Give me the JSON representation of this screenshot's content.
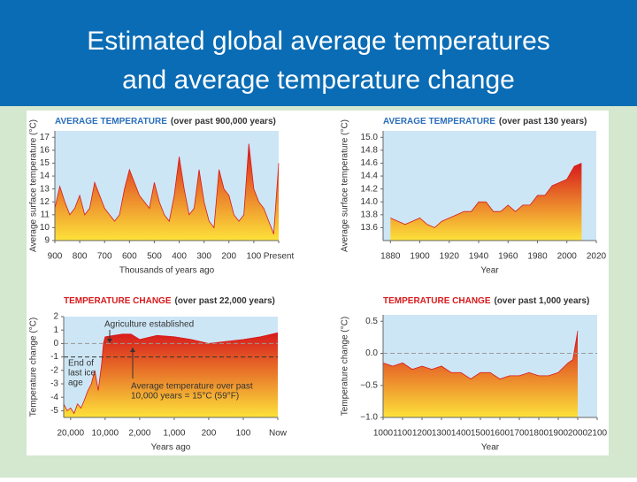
{
  "header": {
    "title_lines": [
      "Estimated global average temperatures",
      "and average temperature change"
    ]
  },
  "chart_data": [
    {
      "type": "area",
      "title": "AVERAGE TEMPERATURE",
      "subtitle": "(over past 900,000 years)",
      "title_color": "#2a6ebb",
      "x_label": "Thousands of years ago",
      "y_label": "Average surface temperature (°C)",
      "x": [
        900,
        880,
        860,
        840,
        820,
        800,
        780,
        760,
        740,
        720,
        700,
        680,
        660,
        640,
        620,
        600,
        580,
        560,
        540,
        520,
        500,
        480,
        460,
        440,
        420,
        400,
        380,
        360,
        340,
        320,
        300,
        280,
        260,
        240,
        220,
        200,
        180,
        160,
        140,
        120,
        100,
        80,
        60,
        40,
        20,
        0
      ],
      "values": [
        11.5,
        13.2,
        12,
        11,
        11.5,
        12.5,
        11,
        11.5,
        13.5,
        12.5,
        11.5,
        11,
        10.5,
        11,
        13,
        14.5,
        13.5,
        12.5,
        12,
        11.5,
        13.5,
        12,
        11,
        10.5,
        12.5,
        15.5,
        13,
        11,
        11.5,
        14.5,
        12,
        10.5,
        10,
        14.5,
        13,
        12.5,
        11,
        10.5,
        11,
        16.5,
        13,
        12,
        11.5,
        10.5,
        9.5,
        15
      ],
      "xlim": [
        900,
        0
      ],
      "xticks": [
        900,
        800,
        700,
        600,
        500,
        400,
        300,
        200,
        100,
        {
          "value": 0,
          "label": "Present"
        }
      ],
      "ylim": [
        9,
        17.5
      ],
      "yticks": [
        9,
        10,
        11,
        12,
        13,
        14,
        15,
        16,
        17
      ],
      "gradient": [
        "#d7191c",
        "#fde23a"
      ],
      "background": "#cde6f5"
    },
    {
      "type": "area",
      "title": "AVERAGE TEMPERATURE",
      "subtitle": "(over past 130 years)",
      "title_color": "#2a6ebb",
      "x_label": "Year",
      "y_label": "Average surface temperature (°C)",
      "x": [
        1880,
        1885,
        1890,
        1895,
        1900,
        1905,
        1910,
        1915,
        1920,
        1925,
        1930,
        1935,
        1940,
        1945,
        1950,
        1955,
        1960,
        1965,
        1970,
        1975,
        1980,
        1985,
        1990,
        1995,
        2000,
        2005,
        2010
      ],
      "values": [
        13.75,
        13.7,
        13.65,
        13.7,
        13.75,
        13.65,
        13.6,
        13.7,
        13.75,
        13.8,
        13.85,
        13.85,
        14.0,
        14.0,
        13.85,
        13.85,
        13.95,
        13.85,
        13.95,
        13.95,
        14.1,
        14.1,
        14.25,
        14.3,
        14.35,
        14.55,
        14.6
      ],
      "xlim": [
        1875,
        2020
      ],
      "xticks": [
        1880,
        1900,
        1920,
        1940,
        1960,
        1980,
        2000,
        2020
      ],
      "ylim": [
        13.4,
        15.1
      ],
      "yticks": [
        {
          "value": 13.6,
          "label": "13.6"
        },
        {
          "value": 13.8,
          "label": "13.8"
        },
        {
          "value": 14.0,
          "label": "14.0"
        },
        {
          "value": 14.2,
          "label": "14.2"
        },
        {
          "value": 14.4,
          "label": "14.4"
        },
        {
          "value": 14.6,
          "label": "14.6"
        },
        {
          "value": 14.8,
          "label": "14.8"
        },
        {
          "value": 15.0,
          "label": "15.0"
        }
      ],
      "gradient": [
        "#d7191c",
        "#fde23a"
      ],
      "background": "#cde6f5"
    },
    {
      "type": "area",
      "title": "TEMPERATURE CHANGE",
      "subtitle": "(over past 22,000 years)",
      "title_color": "#d7191c",
      "x_label": "Years ago",
      "y_label": "Temperature change (°C)",
      "x_tick_spacing": "even",
      "x": [
        22000,
        21000,
        20000,
        19000,
        18000,
        17000,
        16000,
        15000,
        14000,
        13000,
        12000,
        11000,
        10500,
        10000,
        8000,
        6000,
        4000,
        2000,
        1500,
        1000,
        600,
        200,
        100,
        50,
        0
      ],
      "values": [
        -4.5,
        -5,
        -4.8,
        -5.2,
        -4.5,
        -4.8,
        -4.2,
        -3.5,
        -3,
        -2,
        -3.5,
        -1.5,
        0,
        0.5,
        0.6,
        0.7,
        0.7,
        0.3,
        0.6,
        0.5,
        0.3,
        0,
        0.3,
        0.5,
        0.8
      ],
      "xlim": [
        22000,
        0
      ],
      "xticks": [
        {
          "value": 20000,
          "label": "20,000"
        },
        {
          "value": 10000,
          "label": "10,000"
        },
        {
          "value": 2000,
          "label": "2,000"
        },
        {
          "value": 1000,
          "label": "1,000"
        },
        200,
        100,
        {
          "value": 0,
          "label": "Now"
        }
      ],
      "ylim": [
        -5.5,
        2
      ],
      "yticks": [
        -5,
        -4,
        -3,
        -2,
        -1,
        0,
        1,
        2
      ],
      "dashed_lines": [
        {
          "value": 0,
          "color": "#999999"
        },
        {
          "value": -1,
          "color": "#333333"
        }
      ],
      "annotations": [
        {
          "lines": [
            "Agriculture established"
          ]
        },
        {
          "lines": [
            "End of",
            "last ice",
            "age"
          ]
        },
        {
          "lines": [
            "Average temperature over past",
            "10,000 years = 15°C (59°F)"
          ]
        }
      ],
      "gradient": [
        "#d7191c",
        "#fde23a"
      ],
      "background": "#cde6f5"
    },
    {
      "type": "area",
      "title": "TEMPERATURE CHANGE",
      "subtitle": "(over past 1,000 years)",
      "title_color": "#d7191c",
      "x_label": "Year",
      "y_label": "Temperature change (°C)",
      "x": [
        1000,
        1050,
        1100,
        1150,
        1200,
        1250,
        1300,
        1350,
        1400,
        1450,
        1500,
        1550,
        1600,
        1650,
        1700,
        1750,
        1800,
        1850,
        1900,
        1950,
        1975,
        2000
      ],
      "values": [
        -0.15,
        -0.2,
        -0.15,
        -0.25,
        -0.2,
        -0.25,
        -0.2,
        -0.3,
        -0.3,
        -0.4,
        -0.3,
        -0.3,
        -0.4,
        -0.35,
        -0.35,
        -0.3,
        -0.35,
        -0.35,
        -0.3,
        -0.15,
        -0.1,
        0.35
      ],
      "xlim": [
        1000,
        2100
      ],
      "xticks": [
        1000,
        1100,
        1200,
        1300,
        1400,
        1500,
        1600,
        1700,
        1800,
        1900,
        2000,
        2100
      ],
      "ylim": [
        -1.0,
        0.6
      ],
      "yticks": [
        {
          "value": -1.0,
          "label": "−1.0"
        },
        {
          "value": -0.5,
          "label": "−0.5"
        },
        {
          "value": 0.0,
          "label": "0.0"
        },
        0.5
      ],
      "dashed_lines": [
        {
          "value": 0,
          "color": "#999999"
        }
      ],
      "gradient": [
        "#d7191c",
        "#fde23a"
      ],
      "background": "#cde6f5"
    }
  ]
}
